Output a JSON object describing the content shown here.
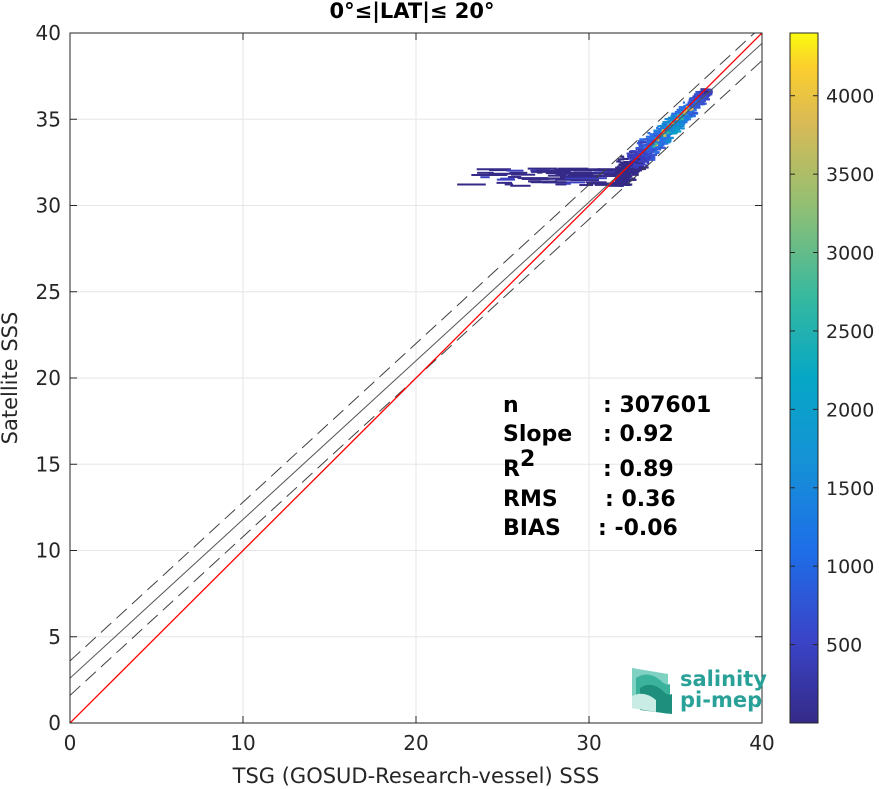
{
  "chart_data": {
    "type": "heatmap",
    "title": "0°≤|LAT|≤ 20°",
    "xlabel": "TSG (GOSUD-Research-vessel) SSS",
    "ylabel": "Satellite SSS",
    "xlim": [
      0,
      40
    ],
    "ylim": [
      0,
      40
    ],
    "xticks": [
      "0",
      "10",
      "20",
      "30",
      "40"
    ],
    "yticks": [
      "0",
      "5",
      "10",
      "15",
      "20",
      "25",
      "30",
      "35",
      "40"
    ],
    "grid": true,
    "identity_line": {
      "color": "#ff0000",
      "slope": 1,
      "intercept": 0
    },
    "regression_line": {
      "color": "#555555",
      "slope": 0.92,
      "intercept": 2.6
    },
    "bounds_lines": [
      {
        "slope": 0.92,
        "intercept": 3.6,
        "style": "dashed"
      },
      {
        "slope": 0.92,
        "intercept": 1.6,
        "style": "dashed"
      }
    ],
    "stats": [
      {
        "label": "n",
        "sep": ": 307601"
      },
      {
        "label": "Slope",
        "sep": ": 0.92"
      },
      {
        "label": "R",
        "sup": "2",
        "sep": ": 0.89"
      },
      {
        "label": "RMS",
        "sep": ": 0.36"
      },
      {
        "label": "BIAS",
        "sep": ": -0.06"
      }
    ],
    "colorbar": {
      "min": 0,
      "max": 4400,
      "ticks": [
        "500",
        "1000",
        "1500",
        "2000",
        "2500",
        "3000",
        "3500",
        "4000"
      ],
      "colormap": "parula"
    },
    "density": {
      "core_x_range": [
        31.5,
        36.8
      ],
      "core_y_range": [
        31.2,
        36.8
      ],
      "tail_x_range": [
        22.0,
        31.5
      ],
      "tail_y_range": [
        31.2,
        32.2
      ],
      "peak_location": [
        34.8,
        34.6
      ]
    }
  },
  "logo": {
    "line1": "salinity",
    "line2": "pi-mep",
    "color": "#2aa198"
  }
}
